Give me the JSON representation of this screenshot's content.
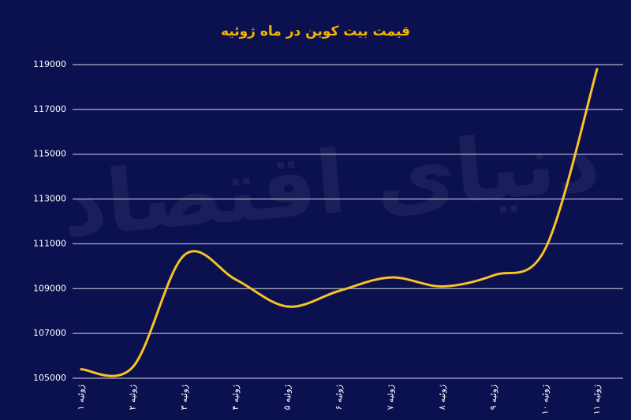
{
  "chart_data": {
    "type": "line",
    "title": "قیمت بیت کوین در ماه ژوئیه",
    "watermark": "دنیای اقتصاد",
    "categories": [
      "۱ ژوئیه",
      "۲ ژوئیه",
      "۳ ژوئیه",
      "۴ ژوئیه",
      "۵ ژوئیه",
      "۶ ژوئیه",
      "۷ ژوئیه",
      "۸ ژوئیه",
      "۹ ژوئیه",
      "۱۰ ژوئیه",
      "۱۱ ژوئیه"
    ],
    "series": [
      {
        "color": "#f7c325",
        "values": [
          105400,
          105500,
          110500,
          109400,
          108200,
          108900,
          109500,
          109100,
          109600,
          110800,
          118800
        ]
      }
    ],
    "ylim": [
      105000,
      119000
    ],
    "yticks": [
      105000,
      107000,
      109000,
      111000,
      113000,
      115000,
      117000,
      119000
    ],
    "grid": true
  }
}
